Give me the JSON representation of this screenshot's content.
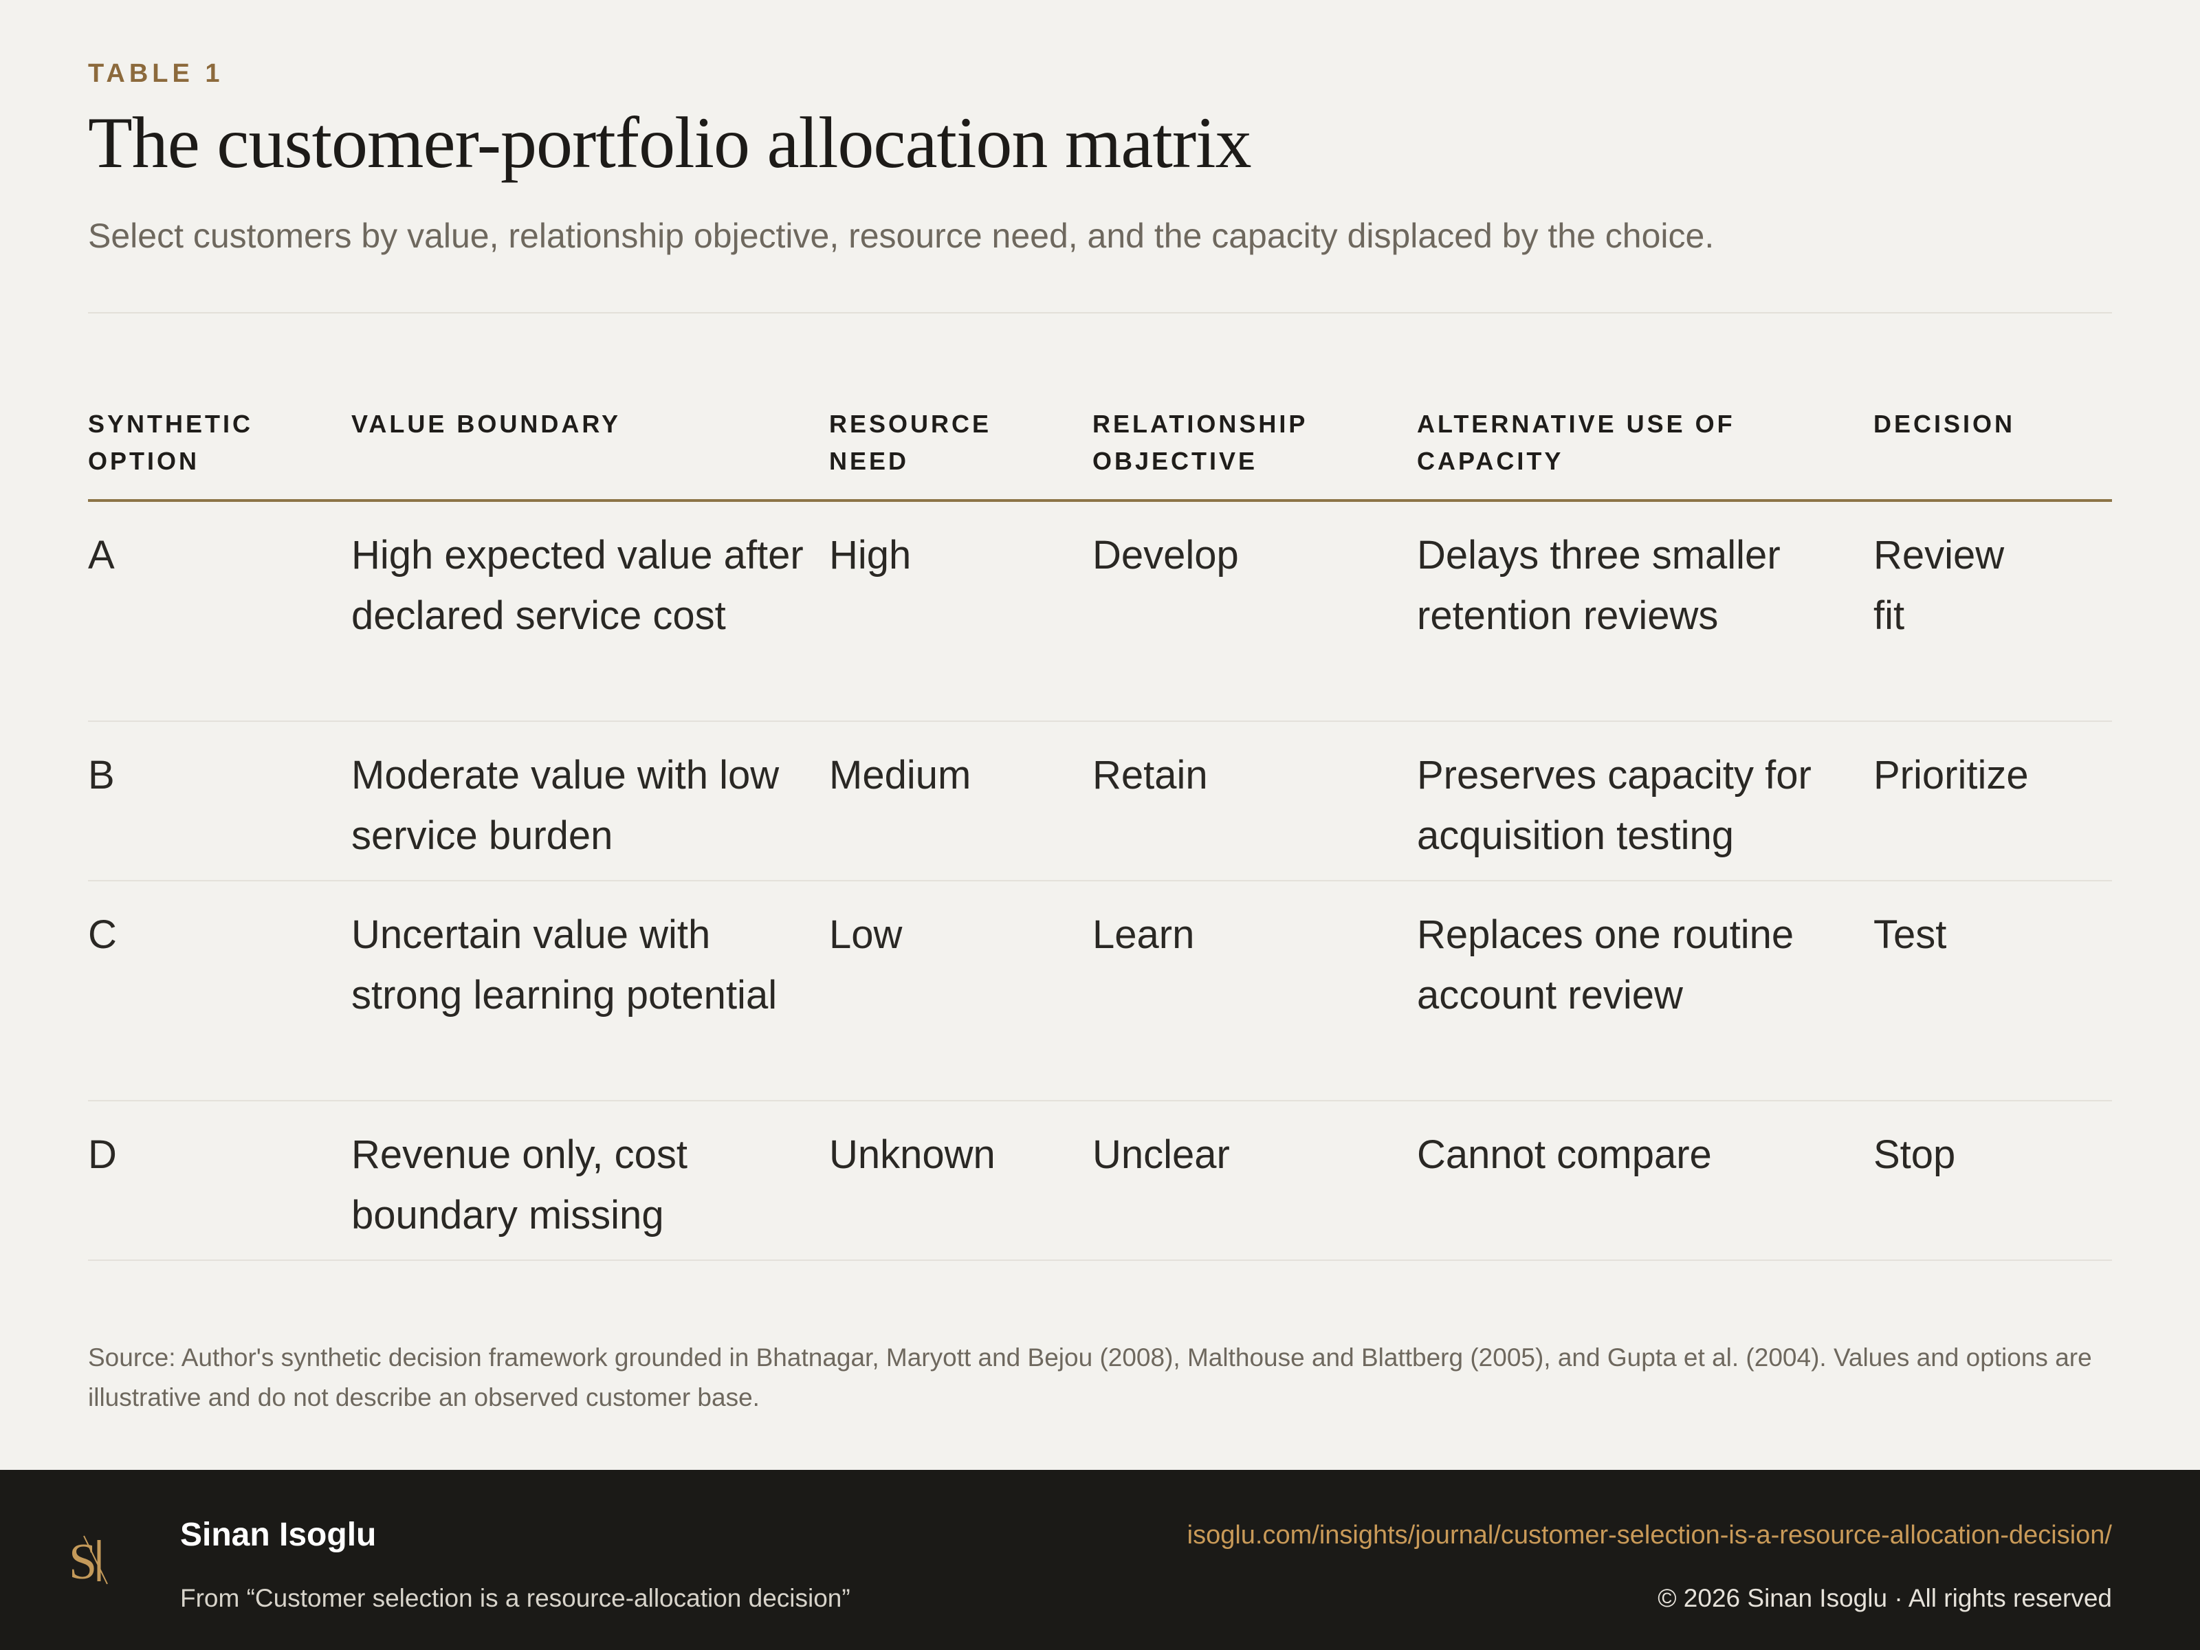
{
  "header": {
    "eyebrow": "TABLE 1",
    "title": "The customer-portfolio allocation matrix",
    "subtitle": "Select customers by value, relationship objective, resource need, and the capacity displaced by the choice."
  },
  "table": {
    "columns": [
      "SYNTHETIC OPTION",
      "VALUE BOUNDARY",
      "RESOURCE NEED",
      "RELATIONSHIP OBJECTIVE",
      "ALTERNATIVE USE OF CAPACITY",
      "DECISION"
    ],
    "rows": [
      [
        "A",
        "High expected value after declared service cost",
        "High",
        "Develop",
        "Delays three smaller retention reviews",
        "Review fit"
      ],
      [
        "B",
        "Moderate value with low service burden",
        "Medium",
        "Retain",
        "Preserves capacity for acquisition testing",
        "Prioritize"
      ],
      [
        "C",
        "Uncertain value with strong learning potential",
        "Low",
        "Learn",
        "Replaces one routine account review",
        "Test"
      ],
      [
        "D",
        "Revenue only, cost boundary missing",
        "Unknown",
        "Unclear",
        "Cannot compare",
        "Stop"
      ]
    ]
  },
  "source": "Source: Author's synthetic decision framework grounded in Bhatnagar, Maryott and Bejou (2008), Malthouse and Blattberg (2005), and Gupta et al. (2004). Values and options are illustrative and do not describe an observed customer base.",
  "footer": {
    "logo_text": "SI",
    "author": "Sinan Isoglu",
    "from": "From “Customer selection is a resource-allocation decision”",
    "url": "isoglu.com/insights/journal/customer-selection-is-a-resource-allocation-decision/",
    "copyright": "© 2026 Sinan Isoglu · All rights reserved"
  }
}
